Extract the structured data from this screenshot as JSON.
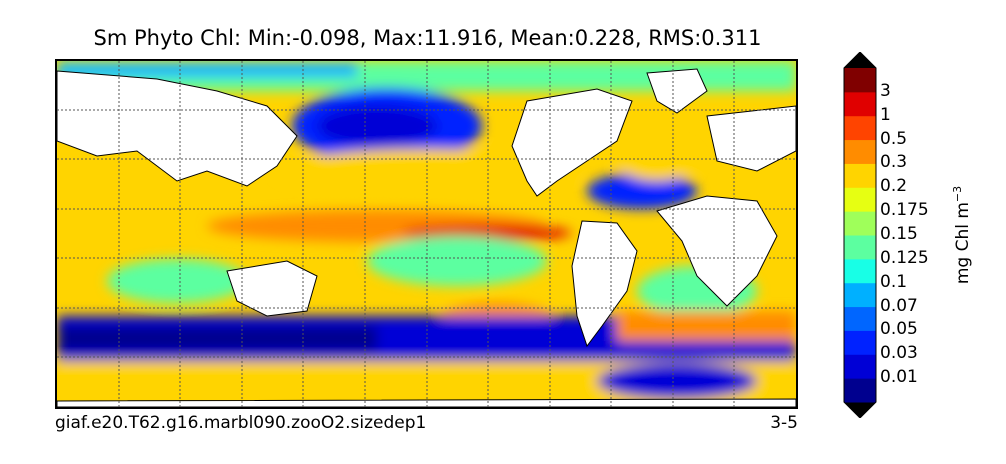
{
  "figure": {
    "title": "Sm Phyto Chl: Min:-0.098, Max:11.916, Mean:0.228, RMS:0.311",
    "footer_left": "giaf.e20.T62.g16.marbl090.zooO2.sizedep1",
    "footer_right": "3-5"
  },
  "colorbar": {
    "units_label": "mg Chl m",
    "units_exponent": "−3",
    "levels": [
      "0.01",
      "0.03",
      "0.05",
      "0.07",
      "0.1",
      "0.125",
      "0.15",
      "0.175",
      "0.2",
      "0.3",
      "0.5",
      "1",
      "3"
    ],
    "colors": [
      "#00008f",
      "#0000d6",
      "#0022ff",
      "#0066ff",
      "#00b0ff",
      "#18ffe6",
      "#5cffa0",
      "#9fff5a",
      "#e6ff12",
      "#ffd400",
      "#ff8c00",
      "#ff4400",
      "#e00000",
      "#800000"
    ]
  },
  "colors": {
    "land": "#ffffff",
    "grid": "#555555",
    "contour": "#000000"
  }
}
